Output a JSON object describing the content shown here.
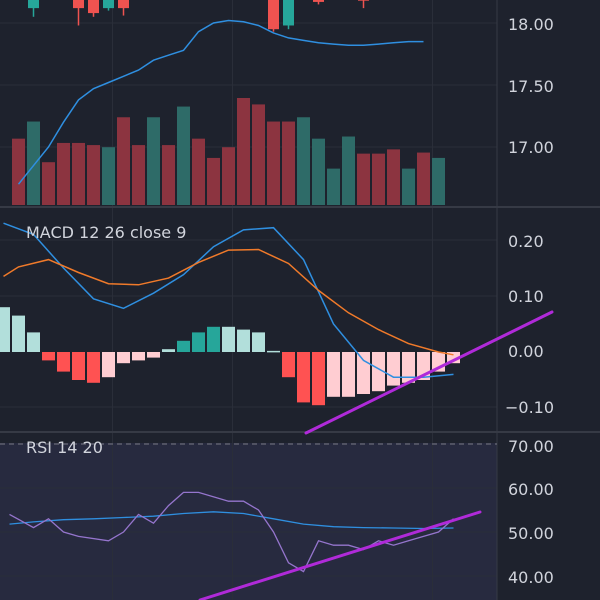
{
  "colors": {
    "background": "#1e222d",
    "rsi_band": "#272a3f",
    "grid": "#2a2e39",
    "separator": "#363a45",
    "text": "#d1d4dc",
    "up_candle": "#26a69a",
    "down_candle": "#ef5350",
    "volume_up": "#2e6b68",
    "volume_down": "#8c3440",
    "ma_line": "#2f8fe0",
    "macd_line": "#2f8fe0",
    "signal_line": "#f07a2a",
    "hist_pos_grow": "#26a69a",
    "hist_pos_fall": "#b2dfdb",
    "hist_neg_fall": "#ff5252",
    "hist_neg_grow": "#ffcdd2",
    "rsi_line": "#9575cd",
    "rsi_ma_line": "#2f8fe0",
    "trendline": "#b02ad9"
  },
  "chart_data": [
    {
      "type": "candlestick",
      "panel": "price",
      "y_ticks": [
        "18.00",
        "17.50",
        "17.00"
      ],
      "ylim": [
        16.55,
        18.2
      ],
      "grid": true,
      "candles": [
        {
          "x": 1,
          "open": 18.12,
          "close": 18.19,
          "high": 18.22,
          "low": 18.05,
          "dir": "up"
        },
        {
          "x": 4,
          "open": 18.2,
          "close": 18.12,
          "high": 18.22,
          "low": 17.98,
          "dir": "down"
        },
        {
          "x": 5,
          "open": 18.2,
          "close": 18.08,
          "high": 18.22,
          "low": 18.05,
          "dir": "down"
        },
        {
          "x": 6,
          "open": 18.12,
          "close": 18.19,
          "high": 18.22,
          "low": 18.1,
          "dir": "up"
        },
        {
          "x": 7,
          "open": 18.2,
          "close": 18.12,
          "high": 18.22,
          "low": 18.06,
          "dir": "down"
        },
        {
          "x": 17,
          "open": 18.2,
          "close": 17.95,
          "high": 18.22,
          "low": 17.93,
          "dir": "down"
        },
        {
          "x": 18,
          "open": 17.98,
          "close": 18.2,
          "high": 18.22,
          "low": 17.95,
          "dir": "up"
        },
        {
          "x": 20,
          "open": 18.2,
          "close": 18.17,
          "high": 18.22,
          "low": 18.15,
          "dir": "down"
        },
        {
          "x": 23,
          "open": 18.2,
          "close": 18.18,
          "high": 18.22,
          "low": 18.12,
          "dir": "down"
        }
      ],
      "ma": {
        "x": [
          0,
          2,
          3,
          4,
          5,
          6,
          7,
          8,
          9,
          10,
          11,
          12,
          13,
          14,
          15,
          16,
          17,
          18,
          19,
          20,
          21,
          22,
          23,
          24,
          25,
          26,
          27
        ],
        "y": [
          16.7,
          17.0,
          17.2,
          17.38,
          17.47,
          17.52,
          17.57,
          17.62,
          17.7,
          17.74,
          17.78,
          17.93,
          18.0,
          18.02,
          18.01,
          17.98,
          17.92,
          17.88,
          17.86,
          17.84,
          17.83,
          17.82,
          17.82,
          17.83,
          17.84,
          17.85,
          17.85
        ]
      },
      "volume": {
        "values": [
          0.62,
          0.78,
          0.4,
          0.58,
          0.58,
          0.56,
          0.54,
          0.82,
          0.56,
          0.82,
          0.56,
          0.92,
          0.62,
          0.44,
          0.54,
          1.0,
          0.94,
          0.78,
          0.78,
          0.82,
          0.62,
          0.34,
          0.64,
          0.48,
          0.48,
          0.52,
          0.34,
          0.49,
          0.44
        ],
        "dirs": [
          "down",
          "up",
          "down",
          "down",
          "down",
          "down",
          "up",
          "down",
          "down",
          "up",
          "down",
          "up",
          "down",
          "down",
          "down",
          "down",
          "down",
          "down",
          "down",
          "up",
          "up",
          "up",
          "up",
          "down",
          "down",
          "down",
          "up",
          "down",
          "up"
        ]
      }
    },
    {
      "type": "macd",
      "panel": "macd",
      "label": "MACD 12 26 close 9",
      "y_ticks": [
        "0.20",
        "0.10",
        "0.00",
        "−0.10"
      ],
      "ylim": [
        -0.15,
        0.255
      ],
      "grid": true,
      "histogram": [
        0.08,
        0.065,
        0.035,
        -0.015,
        -0.035,
        -0.05,
        -0.055,
        -0.045,
        -0.02,
        -0.015,
        -0.01,
        0.005,
        0.02,
        0.035,
        0.045,
        0.045,
        0.04,
        0.035,
        0.002,
        -0.045,
        -0.09,
        -0.095,
        -0.08,
        -0.08,
        -0.075,
        -0.07,
        -0.06,
        -0.055,
        -0.05,
        -0.035,
        -0.02
      ],
      "hist_colors": [
        "pos_fall",
        "pos_fall",
        "pos_fall",
        "neg_fall",
        "neg_fall",
        "neg_fall",
        "neg_fall",
        "neg_grow",
        "neg_grow",
        "neg_grow",
        "neg_grow",
        "pos_fall",
        "pos_grow",
        "pos_grow",
        "pos_grow",
        "pos_fall",
        "pos_fall",
        "pos_fall",
        "pos_fall",
        "neg_fall",
        "neg_fall",
        "neg_fall",
        "neg_grow",
        "neg_grow",
        "neg_grow",
        "neg_grow",
        "neg_grow",
        "neg_grow",
        "neg_grow",
        "neg_grow",
        "neg_grow"
      ],
      "macd_line": {
        "x": [
          -1,
          1,
          3,
          5,
          7,
          9,
          11,
          13,
          15,
          17,
          19,
          21,
          23,
          25,
          27,
          29
        ],
        "y": [
          0.23,
          0.21,
          0.15,
          0.095,
          0.078,
          0.105,
          0.138,
          0.188,
          0.218,
          0.222,
          0.165,
          0.05,
          -0.015,
          -0.045,
          -0.045,
          -0.04
        ]
      },
      "signal_line": {
        "x": [
          -1,
          0,
          2,
          4,
          6,
          8,
          10,
          12,
          14,
          16,
          18,
          20,
          22,
          24,
          26,
          28,
          29
        ],
        "y": [
          0.135,
          0.152,
          0.165,
          0.142,
          0.122,
          0.12,
          0.132,
          0.16,
          0.182,
          0.183,
          0.158,
          0.11,
          0.07,
          0.04,
          0.015,
          0.0,
          -0.005
        ]
      }
    },
    {
      "type": "line",
      "panel": "rsi",
      "label": "RSI 14 20",
      "y_ticks": [
        "70.00",
        "60.00",
        "50.00",
        "40.00"
      ],
      "ylim": [
        36.5,
        73
      ],
      "grid": true,
      "rsi": {
        "x": [
          -0.6,
          1,
          2,
          3,
          4,
          6,
          7,
          8,
          9,
          10,
          11,
          12,
          14,
          15,
          16,
          17,
          18,
          19,
          20,
          21,
          22,
          23,
          24,
          25,
          26,
          27,
          28,
          29
        ],
        "y": [
          54,
          51,
          53,
          50,
          49,
          48,
          50,
          54,
          52,
          56,
          59,
          59,
          57,
          57,
          55,
          50,
          43,
          41,
          48,
          47,
          47,
          46,
          48,
          47,
          48,
          49,
          50,
          53
        ]
      },
      "rsi_ma": {
        "x": [
          -0.6,
          1,
          3,
          5,
          7,
          9,
          11,
          13,
          15,
          17,
          19,
          21,
          23,
          25,
          27,
          29
        ],
        "y": [
          51.8,
          52.3,
          52.8,
          53.0,
          53.3,
          53.6,
          54.2,
          54.6,
          54.2,
          53.0,
          51.8,
          51.2,
          51.0,
          50.9,
          50.8,
          50.9
        ]
      }
    }
  ]
}
